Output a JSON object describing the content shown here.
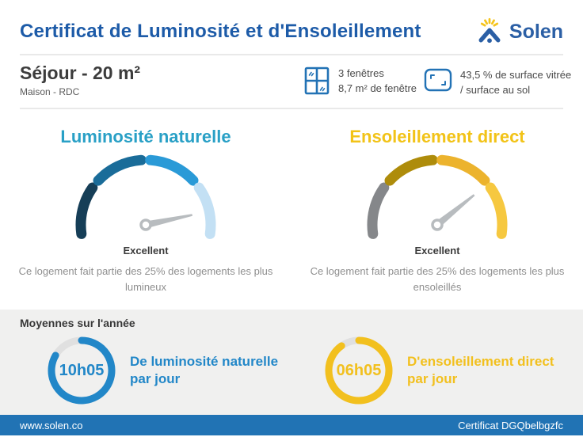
{
  "header": {
    "title": "Certificat de Luminosité et d'Ensoleillement",
    "brand": "Solen"
  },
  "colors": {
    "primary_blue": "#1D5BA8",
    "logo_blue": "#2B5FA5",
    "logo_yellow": "#F5C41C",
    "icon_blue": "#2272B5",
    "footer_blue": "#2173B4",
    "section_gray_bg": "#F0F0EF",
    "divider_gray": "#E9E9E9"
  },
  "room": {
    "title": "Séjour - 20 m²",
    "subtitle": "Maison - RDC",
    "windows_line1": "3 fenêtres",
    "windows_line2": "8,7 m² de fenêtre",
    "glazing_line1": "43,5 % de surface vitrée",
    "glazing_line2": "/ surface au sol"
  },
  "gauges": [
    {
      "title": "Luminosité naturelle",
      "title_color": "#29A0C6",
      "segment_colors": [
        "#163E57",
        "#1A6C99",
        "#2A9AD7",
        "#C3E0F4"
      ],
      "needle_angle_deg": 12,
      "needle_color": "#B8BCBF",
      "rating": "Excellent",
      "description": "Ce logement fait partie des 25% des logements les plus lumineux"
    },
    {
      "title": "Ensoleillement direct",
      "title_color": "#F2C318",
      "segment_colors": [
        "#85878A",
        "#AE8C0B",
        "#ECB32D",
        "#F6C840"
      ],
      "needle_angle_deg": 39,
      "needle_color": "#B8BCBF",
      "rating": "Excellent",
      "description": "Ce logement fait partie des 25% des logements les plus ensoleillés"
    }
  ],
  "averages": {
    "section_title": "Moyennes sur l'année",
    "items": [
      {
        "value": "10h05",
        "label_line1": "De luminosité naturelle",
        "label_line2": "par jour",
        "color": "#2287C8",
        "track_color": "#E0E0E0",
        "fill_deg": 300
      },
      {
        "value": "06h05",
        "label_line1": "D'ensoleillement direct",
        "label_line2": "par jour",
        "color": "#F2C01E",
        "track_color": "#E0E0E0",
        "fill_deg": 325
      }
    ]
  },
  "footer": {
    "site": "www.solen.co",
    "certificate": "Certificat DGQbelbgzfc"
  },
  "chart_data": [
    {
      "type": "gauge",
      "title": "Luminosité naturelle",
      "rating": "Excellent",
      "note": "parmi les 25% des logements les plus lumineux",
      "segments": 4,
      "needle_angle_deg": 12
    },
    {
      "type": "gauge",
      "title": "Ensoleillement direct",
      "rating": "Excellent",
      "note": "parmi les 25% des logements les plus ensoleillés",
      "segments": 4,
      "needle_angle_deg": 39
    },
    {
      "type": "donut",
      "value": "10h05",
      "label": "De luminosité naturelle par jour",
      "fill_deg": 300,
      "fill_percent": 83
    },
    {
      "type": "donut",
      "value": "06h05",
      "label": "D'ensoleillement direct par jour",
      "fill_deg": 325,
      "fill_percent": 90
    }
  ]
}
